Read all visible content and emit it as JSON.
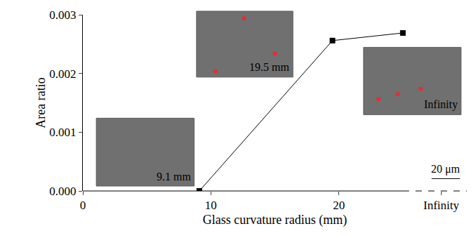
{
  "chart_data": {
    "type": "line",
    "xlabel": "Glass curvature radius (mm)",
    "ylabel": "Area ratio",
    "x": [
      9.1,
      19.5,
      25
    ],
    "values": [
      0,
      0.00256,
      0.00269
    ],
    "color": "#000000",
    "marker": "square",
    "xlim": [
      0,
      30
    ],
    "xticks": [
      0,
      10,
      20,
      {
        "value": 28,
        "label": "Infinity"
      }
    ],
    "ylim": [
      0,
      0.003
    ],
    "yticks": [
      {
        "value": 0,
        "label": "0.000"
      },
      {
        "value": 0.001,
        "label": "0.001"
      },
      {
        "value": 0.002,
        "label": "0.002"
      },
      {
        "value": 0.003,
        "label": "0.003"
      }
    ],
    "grid": false,
    "annotations": [
      "9.1 mm",
      "19.5 mm",
      "Infinity",
      "20 μm"
    ]
  }
}
